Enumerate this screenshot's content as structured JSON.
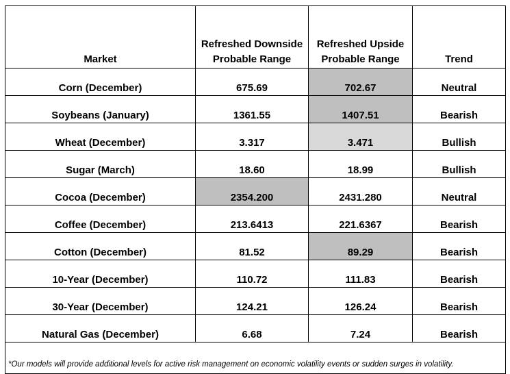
{
  "header": {
    "market": "Market",
    "downside_line1": "Refreshed Downside",
    "downside_line2": "Probable Range",
    "upside_line1": "Refreshed Upside",
    "upside_line2": "Probable Range",
    "trend": "Trend"
  },
  "colors": {
    "downside_text": "#00b050",
    "upside_text": "#ff0000",
    "shade_dark": "#bfbfbf",
    "shade_light": "#d9d9d9"
  },
  "rows": [
    {
      "market": "Corn (December)",
      "downside": "675.69",
      "upside": "702.67",
      "trend": "Neutral"
    },
    {
      "market": "Soybeans (January)",
      "downside": "1361.55",
      "upside": "1407.51",
      "trend": "Bearish"
    },
    {
      "market": "Wheat (December)",
      "downside": "3.317",
      "upside": "3.471",
      "trend": "Bullish"
    },
    {
      "market": "Sugar (March)",
      "downside": "18.60",
      "upside": "18.99",
      "trend": "Bullish"
    },
    {
      "market": "Cocoa (December)",
      "downside": "2354.200",
      "upside": "2431.280",
      "trend": "Neutral"
    },
    {
      "market": "Coffee (December)",
      "downside": "213.6413",
      "upside": "221.6367",
      "trend": "Bearish"
    },
    {
      "market": "Cotton (December)",
      "downside": "81.52",
      "upside": "89.29",
      "trend": "Bearish"
    },
    {
      "market": "10-Year (December)",
      "downside": "110.72",
      "upside": "111.83",
      "trend": "Bearish"
    },
    {
      "market": "30-Year (December)",
      "downside": "124.21",
      "upside": "126.24",
      "trend": "Bearish"
    },
    {
      "market": "Natural Gas (December)",
      "downside": "6.68",
      "upside": "7.24",
      "trend": "Bearish"
    }
  ],
  "footnote": "*Our models will provide additional levels for active risk management on economic volatility events or sudden surges in volatility."
}
